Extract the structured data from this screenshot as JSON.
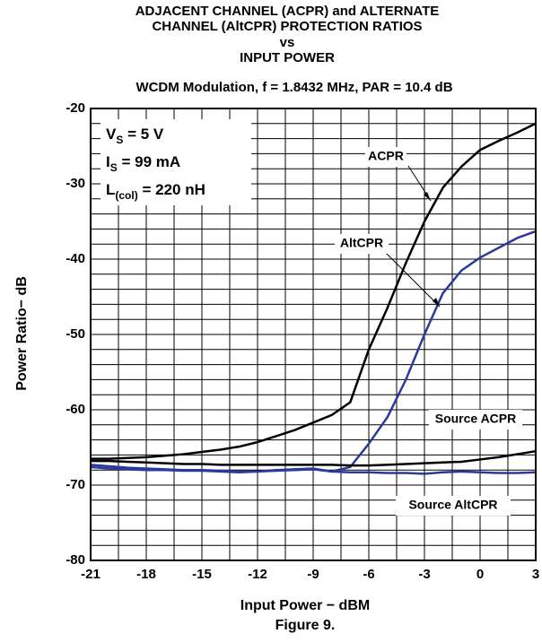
{
  "chart_data": {
    "type": "line",
    "title": [
      "ADJACENT CHANNEL (ACPR) and ALTERNATE",
      "CHANNEL (AltCPR) PROTECTION RATIOS",
      "vs",
      "INPUT POWER"
    ],
    "subtitle": "WCDM Modulation, f = 1.8432 MHz, PAR = 10.4 dB",
    "x_label": "Input Power − dBM",
    "y_label": "Power Ratio− dB",
    "caption": "Figure 9.",
    "annotations": [
      {
        "main": "V",
        "sub": "S",
        "rest": " = 5 V"
      },
      {
        "main": "I",
        "sub": "S",
        "rest": "  = 99 mA"
      },
      {
        "main": "L",
        "sub": "(col)",
        "rest": " = 220 nH"
      }
    ],
    "x": [
      -21,
      -20,
      -19,
      -18,
      -17,
      -16,
      -15,
      -14,
      -13,
      -12,
      -11,
      -10,
      -9,
      -8,
      -7,
      -6,
      -5,
      -4,
      -3,
      -2,
      -1,
      0,
      1,
      2,
      3
    ],
    "series": [
      {
        "name": "ACPR",
        "color": "#000000",
        "values": [
          -66.5,
          -66.5,
          -66.4,
          -66.3,
          -66.1,
          -65.9,
          -65.6,
          -65.3,
          -64.9,
          -64.3,
          -63.5,
          -62.7,
          -61.7,
          -60.7,
          -59,
          -52,
          -46.5,
          -40.5,
          -35,
          -30.5,
          -27.7,
          -25.5,
          -24.3,
          -23.2,
          -22
        ]
      },
      {
        "name": "AltCPR",
        "color": "#2b3a9a",
        "values": [
          -67.3,
          -67.5,
          -67.7,
          -67.8,
          -67.9,
          -68,
          -68,
          -68.1,
          -68.2,
          -68.2,
          -68,
          -67.9,
          -67.8,
          -68.2,
          -67.6,
          -64.5,
          -61,
          -56,
          -50,
          -44.5,
          -41.5,
          -39.8,
          -38.5,
          -37.2,
          -36.3
        ]
      },
      {
        "name": "Source ACPR",
        "color": "#000000",
        "values": [
          -66.8,
          -66.8,
          -66.9,
          -67,
          -67.1,
          -67.2,
          -67.2,
          -67.3,
          -67.3,
          -67.3,
          -67.3,
          -67.3,
          -67.3,
          -67.3,
          -67.4,
          -67.4,
          -67.3,
          -67.2,
          -67.1,
          -67,
          -66.9,
          -66.6,
          -66.3,
          -65.9,
          -65.5
        ]
      },
      {
        "name": "Source AltCPR",
        "color": "#2b3a9a",
        "values": [
          -67.6,
          -67.8,
          -67.9,
          -68,
          -68,
          -68.1,
          -68.1,
          -68.2,
          -68.3,
          -68.2,
          -68.1,
          -68,
          -67.9,
          -68.2,
          -68.3,
          -68.3,
          -68.4,
          -68.4,
          -68.5,
          -68.3,
          -68.2,
          -68.3,
          -68.4,
          -68.4,
          -68.3
        ]
      }
    ],
    "xlim": [
      -21,
      3
    ],
    "ylim": [
      -80,
      -20
    ],
    "xticks": [
      -21,
      -18,
      -15,
      -12,
      -9,
      -6,
      -3,
      0,
      3
    ],
    "yticks": [
      -20,
      -30,
      -40,
      -50,
      -60,
      -70,
      -80
    ],
    "xgrid": [
      -21,
      -19.5,
      -18,
      -16.5,
      -15,
      -13.5,
      -12,
      -10.5,
      -9,
      -7.5,
      -6,
      -4.5,
      -3,
      -1.5,
      0,
      1.5,
      3
    ],
    "ygrid": [
      -20,
      -22,
      -24,
      -26,
      -28,
      -30,
      -32,
      -34,
      -36,
      -38,
      -40,
      -42,
      -44,
      -46,
      -48,
      -50,
      -52,
      -54,
      -56,
      -58,
      -60,
      -62,
      -64,
      -66,
      -68,
      -70,
      -72,
      -74,
      -76,
      -78,
      -80
    ],
    "grid": true
  }
}
